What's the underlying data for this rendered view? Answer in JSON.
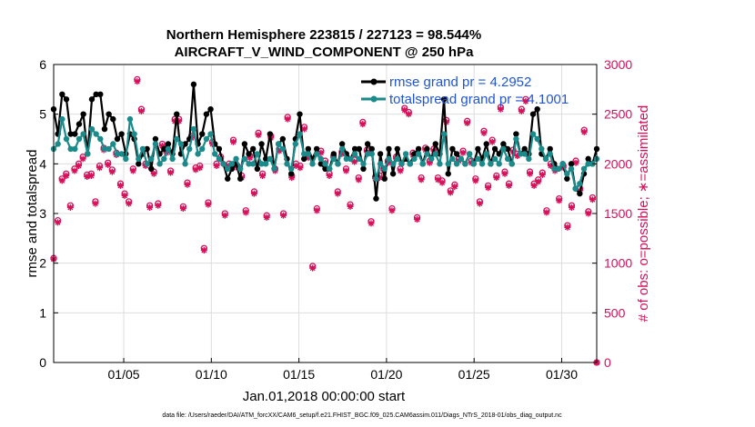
{
  "chart_data": {
    "type": "line",
    "title_line1": "Northern Hemisphere 223815 / 227123 = 98.544%",
    "title_line2": "AIRCRAFT_V_WIND_COMPONENT @ 250 hPa",
    "xlabel": "Jan.01,2018 00:00:00 start",
    "ylabel_left": "rmse and totalspread",
    "ylabel_right": "# of obs: o=possible; ∗=assimilated",
    "footnote": "data file: /Users/raeder/DAI/ATM_forcXX/CAM6_setup/f.e21.FHIST_BGC.f09_025.CAM6assim.011/Diags_NTrS_2018-01/obs_diag_output.nc",
    "xlim": [
      1,
      32
    ],
    "ylim_left": [
      0,
      6
    ],
    "ylim_right": [
      0,
      3000
    ],
    "x_ticks": [
      {
        "value": 5,
        "label": "01/05"
      },
      {
        "value": 10,
        "label": "01/10"
      },
      {
        "value": 15,
        "label": "01/15"
      },
      {
        "value": 20,
        "label": "01/20"
      },
      {
        "value": 25,
        "label": "01/25"
      },
      {
        "value": 30,
        "label": "01/30"
      }
    ],
    "y_ticks_left": [
      0,
      1,
      2,
      3,
      4,
      5,
      6
    ],
    "y_ticks_right": [
      0,
      500,
      1000,
      1500,
      2000,
      2500,
      3000
    ],
    "legend": [
      {
        "label": "rmse grand pr = 4.2952",
        "color": "#000000"
      },
      {
        "label": "totalspread grand pr = 4.1001",
        "color": "#1a8a8a"
      }
    ],
    "colors": {
      "rmse": "#000000",
      "spread": "#1a8a8a",
      "obs": "#d6105a",
      "grid": "#dddddd"
    },
    "series": [
      {
        "name": "rmse",
        "axis": "left",
        "color": "#000000",
        "values": [
          5.1,
          4.6,
          5.4,
          5.3,
          4.6,
          4.6,
          4.8,
          5.0,
          4.2,
          5.3,
          5.4,
          5.4,
          4.7,
          5.0,
          4.9,
          4.5,
          4.6,
          4.2,
          4.6,
          4.5,
          4.0,
          4.2,
          4.3,
          3.9,
          4.5,
          4.2,
          4.3,
          4.4,
          4.2,
          5.0,
          4.2,
          4.4,
          4.5,
          5.6,
          4.4,
          4.6,
          5.0,
          5.1,
          4.4,
          4.3,
          4.0,
          3.7,
          3.9,
          4.0,
          3.7,
          4.4,
          4.2,
          4.3,
          3.9,
          4.4,
          4.1,
          4.6,
          3.9,
          4.4,
          4.5,
          4.1,
          3.8,
          4.5,
          5.0,
          4.1,
          4.3,
          4.1,
          4.3,
          4.0,
          3.9,
          3.9,
          4.2,
          4.0,
          4.4,
          4.2,
          4.1,
          4.3,
          4.3,
          3.9,
          4.4,
          4.3,
          3.3,
          4.2,
          3.7,
          4.3,
          3.8,
          4.3,
          4.0,
          4.1,
          4.0,
          4.2,
          4.3,
          4.0,
          4.3,
          4.1,
          4.4,
          4.2,
          5.3,
          3.8,
          4.3,
          4.2,
          4.1,
          4.0,
          4.2,
          4.0,
          4.3,
          4.1,
          4.4,
          4.0,
          4.3,
          4.2,
          4.4,
          4.3,
          4.0,
          4.6,
          4.2,
          4.3,
          4.2,
          5.0,
          5.1,
          4.2,
          4.1,
          4.3,
          4.0,
          3.9,
          4.0,
          3.7,
          4.0,
          3.5,
          3.4,
          3.8,
          4.1,
          4.0,
          4.3
        ]
      },
      {
        "name": "totalspread",
        "axis": "left",
        "color": "#1a8a8a",
        "values": [
          4.3,
          4.4,
          4.9,
          4.5,
          4.3,
          4.3,
          4.5,
          4.6,
          4.2,
          4.7,
          4.6,
          4.5,
          4.3,
          4.3,
          4.4,
          4.2,
          4.2,
          4.1,
          4.9,
          4.6,
          4.1,
          4.3,
          4.0,
          4.1,
          4.4,
          4.0,
          4.1,
          4.3,
          4.1,
          4.5,
          4.4,
          4.0,
          4.3,
          4.7,
          4.2,
          4.3,
          4.5,
          4.6,
          4.2,
          4.1,
          4.0,
          3.9,
          4.0,
          4.1,
          3.9,
          4.1,
          4.0,
          4.0,
          4.2,
          4.0,
          4.0,
          4.1,
          3.9,
          4.4,
          4.3,
          4.0,
          3.9,
          4.4,
          4.6,
          4.2,
          4.2,
          4.0,
          4.2,
          4.1,
          4.0,
          3.9,
          4.1,
          4.0,
          4.3,
          4.1,
          4.1,
          4.2,
          4.1,
          4.0,
          4.2,
          4.2,
          3.7,
          4.0,
          3.9,
          4.1,
          4.0,
          4.1,
          4.0,
          4.2,
          4.0,
          4.1,
          4.2,
          4.0,
          4.2,
          4.1,
          4.2,
          4.0,
          4.6,
          4.0,
          4.1,
          4.0,
          4.1,
          4.0,
          4.2,
          4.0,
          4.1,
          4.0,
          4.2,
          4.0,
          4.1,
          4.0,
          4.3,
          4.1,
          4.0,
          4.5,
          4.2,
          4.2,
          4.1,
          4.6,
          4.5,
          4.3,
          4.1,
          4.2,
          3.9,
          3.9,
          4.0,
          3.8,
          3.9,
          3.5,
          3.6,
          3.9,
          4.0,
          4.0,
          4.1
        ]
      },
      {
        "name": "obs_possible",
        "axis": "right",
        "color": "#d6105a",
        "marker": "o",
        "values": [
          1050,
          1430,
          1850,
          1900,
          1580,
          1950,
          2000,
          2070,
          1890,
          1900,
          1620,
          1980,
          2160,
          2010,
          1940,
          2110,
          1800,
          1700,
          1620,
          1950,
          2850,
          2550,
          2000,
          1580,
          1920,
          1600,
          2200,
          2130,
          1930,
          2450,
          2450,
          1570,
          1810,
          2280,
          1960,
          1980,
          1150,
          1610,
          2220,
          2000,
          2070,
          1500,
          2000,
          2240,
          1980,
          1880,
          1530,
          2080,
          1720,
          2310,
          1900,
          1480,
          2280,
          1950,
          2150,
          1500,
          2470,
          1880,
          2000,
          1980,
          2370,
          2080,
          970,
          1550,
          2130,
          2030,
          1900,
          2080,
          1720,
          2120,
          1950,
          1590,
          2040,
          1860,
          2420,
          2140,
          1420,
          1870,
          1880,
          1950,
          2030,
          1550,
          2070,
          1950,
          2560,
          2520,
          2110,
          1460,
          1860,
          2160,
          2030,
          2150,
          1860,
          1830,
          2440,
          1730,
          1790,
          2050,
          2130,
          2430,
          2030,
          1850,
          1620,
          2330,
          1780,
          2240,
          1880,
          2570,
          1920,
          1800,
          2140,
          2100,
          2550,
          2650,
          1920,
          1800,
          1840,
          1910,
          1530,
          2000,
          1950,
          1650,
          1980,
          1380,
          1580,
          2030,
          1750,
          2340,
          1520,
          1660,
          0
        ]
      },
      {
        "name": "obs_assimilated",
        "axis": "right",
        "color": "#d6105a",
        "marker": "*",
        "values": [
          1040,
          1410,
          1830,
          1880,
          1560,
          1930,
          1980,
          2050,
          1870,
          1880,
          1600,
          1960,
          2140,
          1990,
          1920,
          2090,
          1780,
          1680,
          1600,
          1930,
          2830,
          2530,
          1980,
          1560,
          1900,
          1580,
          2180,
          2110,
          1910,
          2430,
          2430,
          1550,
          1790,
          2260,
          1940,
          1960,
          1130,
          1590,
          2200,
          1980,
          2050,
          1480,
          1980,
          2220,
          1960,
          1860,
          1510,
          2060,
          1700,
          2290,
          1880,
          1460,
          2260,
          1930,
          2130,
          1480,
          2450,
          1860,
          1980,
          1960,
          2350,
          2060,
          950,
          1530,
          2110,
          2010,
          1880,
          2060,
          1700,
          2100,
          1930,
          1570,
          2020,
          1840,
          2400,
          2120,
          1400,
          1850,
          1860,
          1930,
          2010,
          1530,
          2050,
          1930,
          2540,
          2500,
          2090,
          1440,
          1840,
          2140,
          2010,
          2130,
          1840,
          1810,
          2420,
          1710,
          1770,
          2030,
          2110,
          2410,
          2010,
          1830,
          1600,
          2310,
          1760,
          2220,
          1860,
          2550,
          1900,
          1780,
          2120,
          2080,
          2530,
          2630,
          1900,
          1780,
          1820,
          1890,
          1510,
          1980,
          1930,
          1630,
          1960,
          1360,
          1560,
          2010,
          1730,
          2320,
          1500,
          1640,
          0
        ]
      }
    ]
  }
}
